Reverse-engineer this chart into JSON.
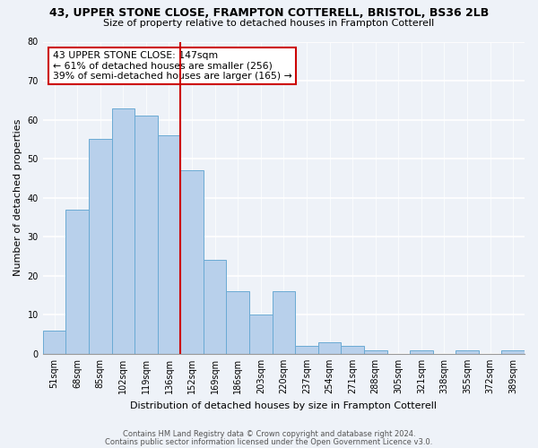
{
  "title": "43, UPPER STONE CLOSE, FRAMPTON COTTERELL, BRISTOL, BS36 2LB",
  "subtitle": "Size of property relative to detached houses in Frampton Cotterell",
  "xlabel": "Distribution of detached houses by size in Frampton Cotterell",
  "ylabel": "Number of detached properties",
  "bar_labels": [
    "51sqm",
    "68sqm",
    "85sqm",
    "102sqm",
    "119sqm",
    "136sqm",
    "152sqm",
    "169sqm",
    "186sqm",
    "203sqm",
    "220sqm",
    "237sqm",
    "254sqm",
    "271sqm",
    "288sqm",
    "305sqm",
    "321sqm",
    "338sqm",
    "355sqm",
    "372sqm",
    "389sqm"
  ],
  "bar_values": [
    6,
    37,
    55,
    63,
    61,
    56,
    47,
    24,
    16,
    10,
    16,
    2,
    3,
    2,
    1,
    0,
    1,
    0,
    1,
    0,
    1
  ],
  "bar_color": "#b8d0eb",
  "bar_edge_color": "#6aaad4",
  "vline_idx": 6,
  "vline_color": "#cc0000",
  "annotation_line1": "43 UPPER STONE CLOSE: 147sqm",
  "annotation_line2": "← 61% of detached houses are smaller (256)",
  "annotation_line3": "39% of semi-detached houses are larger (165) →",
  "annotation_box_color": "white",
  "annotation_box_edge": "#cc0000",
  "ylim": [
    0,
    80
  ],
  "yticks": [
    0,
    10,
    20,
    30,
    40,
    50,
    60,
    70,
    80
  ],
  "footnote1": "Contains HM Land Registry data © Crown copyright and database right 2024.",
  "footnote2": "Contains public sector information licensed under the Open Government Licence v3.0.",
  "bg_color": "#eef2f8"
}
